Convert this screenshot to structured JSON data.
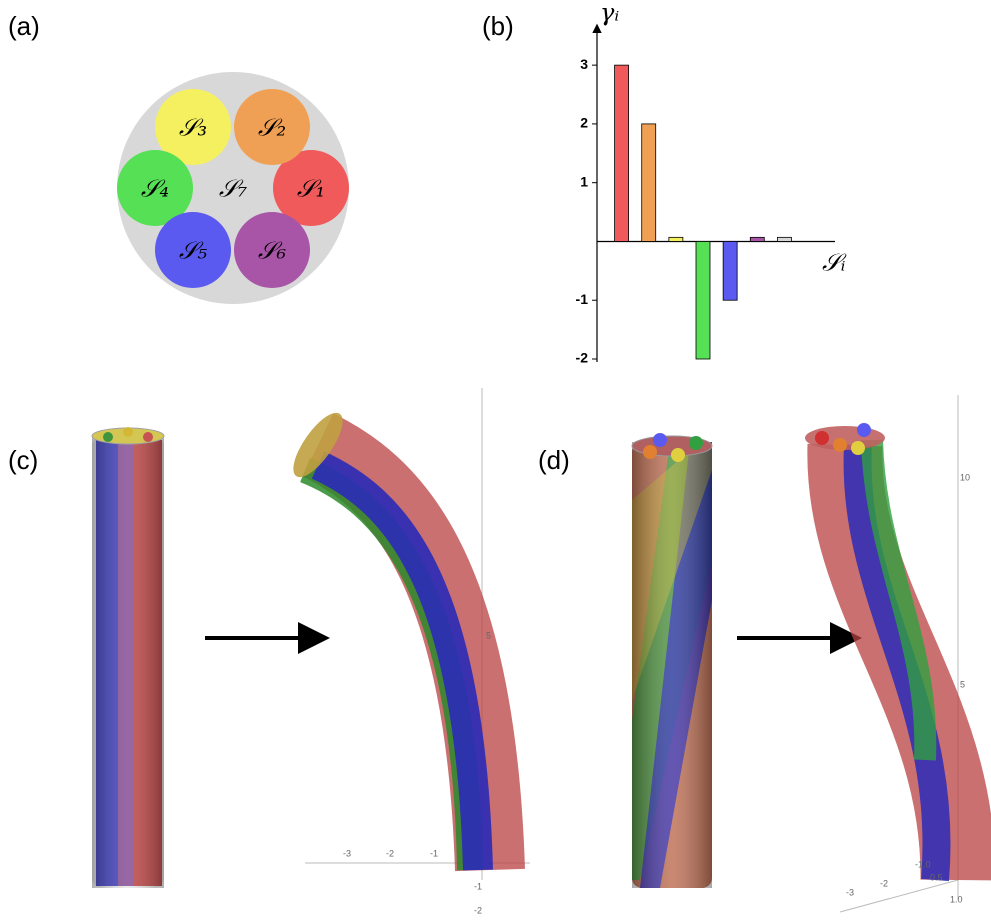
{
  "panel_labels": [
    "(a)",
    "(b)",
    "(c)",
    "(d)"
  ],
  "diagram_labels": [
    "𝒮₁",
    "𝒮₂",
    "𝒮₃",
    "𝒮₄",
    "𝒮₅",
    "𝒮₆",
    "𝒮₇"
  ],
  "plot_c_ticks": [
    "-3",
    "-2",
    "-1",
    "5",
    "-1",
    "-2"
  ],
  "plot_d_ticks": [
    "10",
    "5",
    "-3",
    "-2",
    "-1.0",
    "0.5",
    "1.0"
  ],
  "chart_data": {
    "type": "bar",
    "y_label": "γᵢ",
    "x_label": "𝒮ᵢ",
    "categories": [
      null,
      null,
      null,
      null,
      null,
      null,
      null
    ],
    "values": [
      3,
      2,
      0.07,
      -2,
      -1,
      0.07,
      0.07
    ],
    "colors": [
      "#f05a5a",
      "#f0a055",
      "#f5f060",
      "#55e055",
      "#5a5af0",
      "#a855a8",
      "#d8d8d8"
    ],
    "ylim": [
      -2,
      3.7
    ],
    "yticks": [
      -2,
      -1,
      1,
      2,
      3
    ],
    "grid": false
  }
}
